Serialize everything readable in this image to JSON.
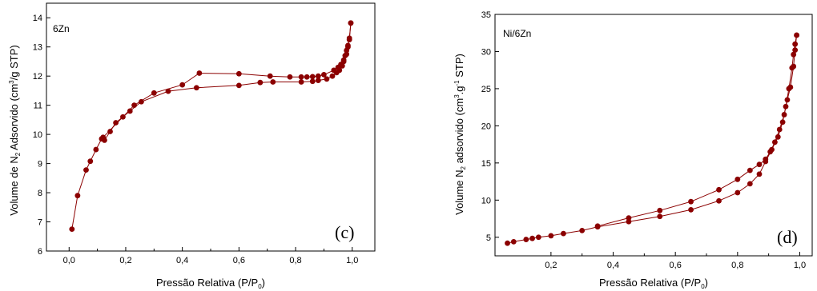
{
  "chart_data": [
    {
      "type": "line",
      "sample_name": "6Zn",
      "panel_label": "(c)",
      "xlabel_main": "Pressão Relativa (P/P",
      "xlabel_sub": "0",
      "xlabel_end": ")",
      "ylabel_1": "Volume de N",
      "ylabel_sub": "2",
      "ylabel_2": " Adsorvido (cm",
      "ylabel_sup": "3",
      "ylabel_3": "/g STP)",
      "xlim": [
        -0.08,
        1.08
      ],
      "ylim": [
        6,
        14.5
      ],
      "xticks": [
        0.0,
        0.2,
        0.4,
        0.6,
        0.8,
        1.0
      ],
      "xtick_labels": [
        "0,0",
        "0,2",
        "0,4",
        "0,6",
        "0,8",
        "1,0"
      ],
      "yticks": [
        6,
        7,
        8,
        9,
        10,
        11,
        12,
        13,
        14
      ],
      "ytick_labels": [
        "6",
        "7",
        "8",
        "9",
        "10",
        "11",
        "12",
        "13",
        "14"
      ],
      "marker_color": "#8b0000",
      "series": [
        {
          "x": [
            0.01,
            0.03,
            0.06,
            0.075,
            0.095,
            0.115,
            0.125,
            0.145,
            0.165,
            0.19,
            0.215,
            0.255,
            0.35,
            0.45,
            0.6,
            0.675,
            0.72,
            0.82,
            0.86,
            0.88,
            0.91,
            0.93,
            0.945,
            0.955,
            0.965,
            0.97,
            0.975,
            0.98,
            0.985,
            0.99,
            0.995
          ],
          "y": [
            6.75,
            7.9,
            8.78,
            9.08,
            9.48,
            9.85,
            9.8,
            10.1,
            10.4,
            10.6,
            10.8,
            11.12,
            11.48,
            11.6,
            11.68,
            11.78,
            11.8,
            11.8,
            11.82,
            11.85,
            11.9,
            12.0,
            12.12,
            12.2,
            12.35,
            12.5,
            12.7,
            12.88,
            13.05,
            13.25,
            13.82
          ]
        },
        {
          "x": [
            0.995,
            0.99,
            0.985,
            0.98,
            0.97,
            0.96,
            0.95,
            0.935,
            0.9,
            0.88,
            0.86,
            0.84,
            0.82,
            0.78,
            0.71,
            0.6,
            0.46,
            0.4,
            0.3,
            0.23,
            0.12
          ],
          "y": [
            13.82,
            13.3,
            13.0,
            12.75,
            12.55,
            12.4,
            12.3,
            12.2,
            12.05,
            12.0,
            11.98,
            11.97,
            11.97,
            11.97,
            12.0,
            12.08,
            12.1,
            11.7,
            11.42,
            11.0,
            9.9
          ]
        }
      ]
    },
    {
      "type": "line",
      "sample_name": "Ni/6Zn",
      "panel_label": "(d)",
      "xlabel_main": "Pressão Relativa (P/P",
      "xlabel_sub": "0",
      "xlabel_end": ")",
      "ylabel_1": "Volume N",
      "ylabel_sub": "2",
      "ylabel_2": " adsorvido (cm",
      "ylabel_sup": "3",
      "ylabel_3": ".g",
      "ylabel_sup2": "-1",
      "ylabel_4": " STP)",
      "xlim": [
        0.02,
        1.04
      ],
      "ylim": [
        2.5,
        35
      ],
      "xticks": [
        0.2,
        0.4,
        0.6,
        0.8,
        1.0
      ],
      "xtick_labels": [
        "0,2",
        "0,4",
        "0,6",
        "0,8",
        "1,0"
      ],
      "yticks": [
        5,
        10,
        15,
        20,
        25,
        30,
        35
      ],
      "ytick_labels": [
        "5",
        "10",
        "15",
        "20",
        "25",
        "30",
        "35"
      ],
      "marker_color": "#8b0000",
      "series": [
        {
          "x": [
            0.06,
            0.08,
            0.12,
            0.14,
            0.16,
            0.2,
            0.24,
            0.3,
            0.35,
            0.45,
            0.55,
            0.65,
            0.74,
            0.8,
            0.84,
            0.87,
            0.89,
            0.91,
            0.93,
            0.945,
            0.955,
            0.965,
            0.975,
            0.98,
            0.985,
            0.99
          ],
          "y": [
            4.2,
            4.4,
            4.7,
            4.85,
            5.0,
            5.2,
            5.5,
            5.9,
            6.4,
            7.1,
            7.8,
            8.7,
            9.9,
            11.0,
            12.2,
            13.5,
            15.2,
            16.8,
            18.5,
            20.5,
            22.6,
            25.0,
            27.8,
            29.6,
            31.0,
            32.2
          ]
        },
        {
          "x": [
            0.99,
            0.985,
            0.98,
            0.97,
            0.96,
            0.95,
            0.935,
            0.92,
            0.905,
            0.89,
            0.87,
            0.84,
            0.8,
            0.74,
            0.65,
            0.55,
            0.45,
            0.35
          ],
          "y": [
            32.2,
            30.2,
            28.0,
            25.2,
            23.5,
            21.5,
            19.5,
            17.8,
            16.5,
            15.5,
            14.8,
            14.0,
            12.8,
            11.4,
            9.8,
            8.6,
            7.6,
            6.5
          ]
        }
      ]
    }
  ]
}
